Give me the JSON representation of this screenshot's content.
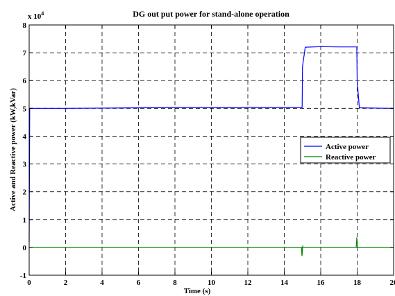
{
  "chart_data": {
    "type": "line",
    "title": "DG out put power for stand-alone operation",
    "xlabel": "Time (s)",
    "ylabel": "Active and Reactive power (kW,kVar)",
    "y_multiplier_base": "x 10",
    "y_multiplier_exp": "4",
    "xlim": [
      0,
      20
    ],
    "ylim": [
      -1,
      8
    ],
    "x_ticks": [
      0,
      2,
      4,
      6,
      8,
      10,
      12,
      14,
      16,
      18,
      20
    ],
    "x_tick_labels": [
      "0",
      "2",
      "4",
      "6",
      "8",
      "10",
      "12",
      "14",
      "16",
      "18",
      "20"
    ],
    "y_ticks": [
      -1,
      0,
      1,
      2,
      3,
      4,
      5,
      6,
      7,
      8
    ],
    "y_tick_labels": [
      "-1",
      "0",
      "1",
      "2",
      "3",
      "4",
      "5",
      "6",
      "7",
      "8"
    ],
    "grid": true,
    "legend_position": "right",
    "series": [
      {
        "name": "Active power",
        "color": "#0000ff",
        "x": [
          0,
          0.03,
          0.06,
          2,
          4,
          6,
          8,
          10,
          11.5,
          12,
          12.5,
          14,
          14.98,
          15.0,
          15.15,
          16,
          17,
          17.98,
          18.0,
          18.12,
          19,
          20
        ],
        "y": [
          0.2,
          5.0,
          5.0,
          5.0,
          5.01,
          5.02,
          5.03,
          5.03,
          5.02,
          5.04,
          5.03,
          5.03,
          5.03,
          6.5,
          7.2,
          7.22,
          7.21,
          7.21,
          6.0,
          5.02,
          5.01,
          5.0
        ]
      },
      {
        "name": "Reactive power",
        "color": "#008000",
        "x": [
          0,
          14.95,
          14.97,
          14.99,
          15.01,
          15.03,
          17.95,
          17.98,
          18.0,
          18.02,
          20
        ],
        "y": [
          0,
          0,
          -0.3,
          -0.2,
          0.05,
          0,
          0,
          0.35,
          0.2,
          0,
          0
        ]
      }
    ]
  }
}
